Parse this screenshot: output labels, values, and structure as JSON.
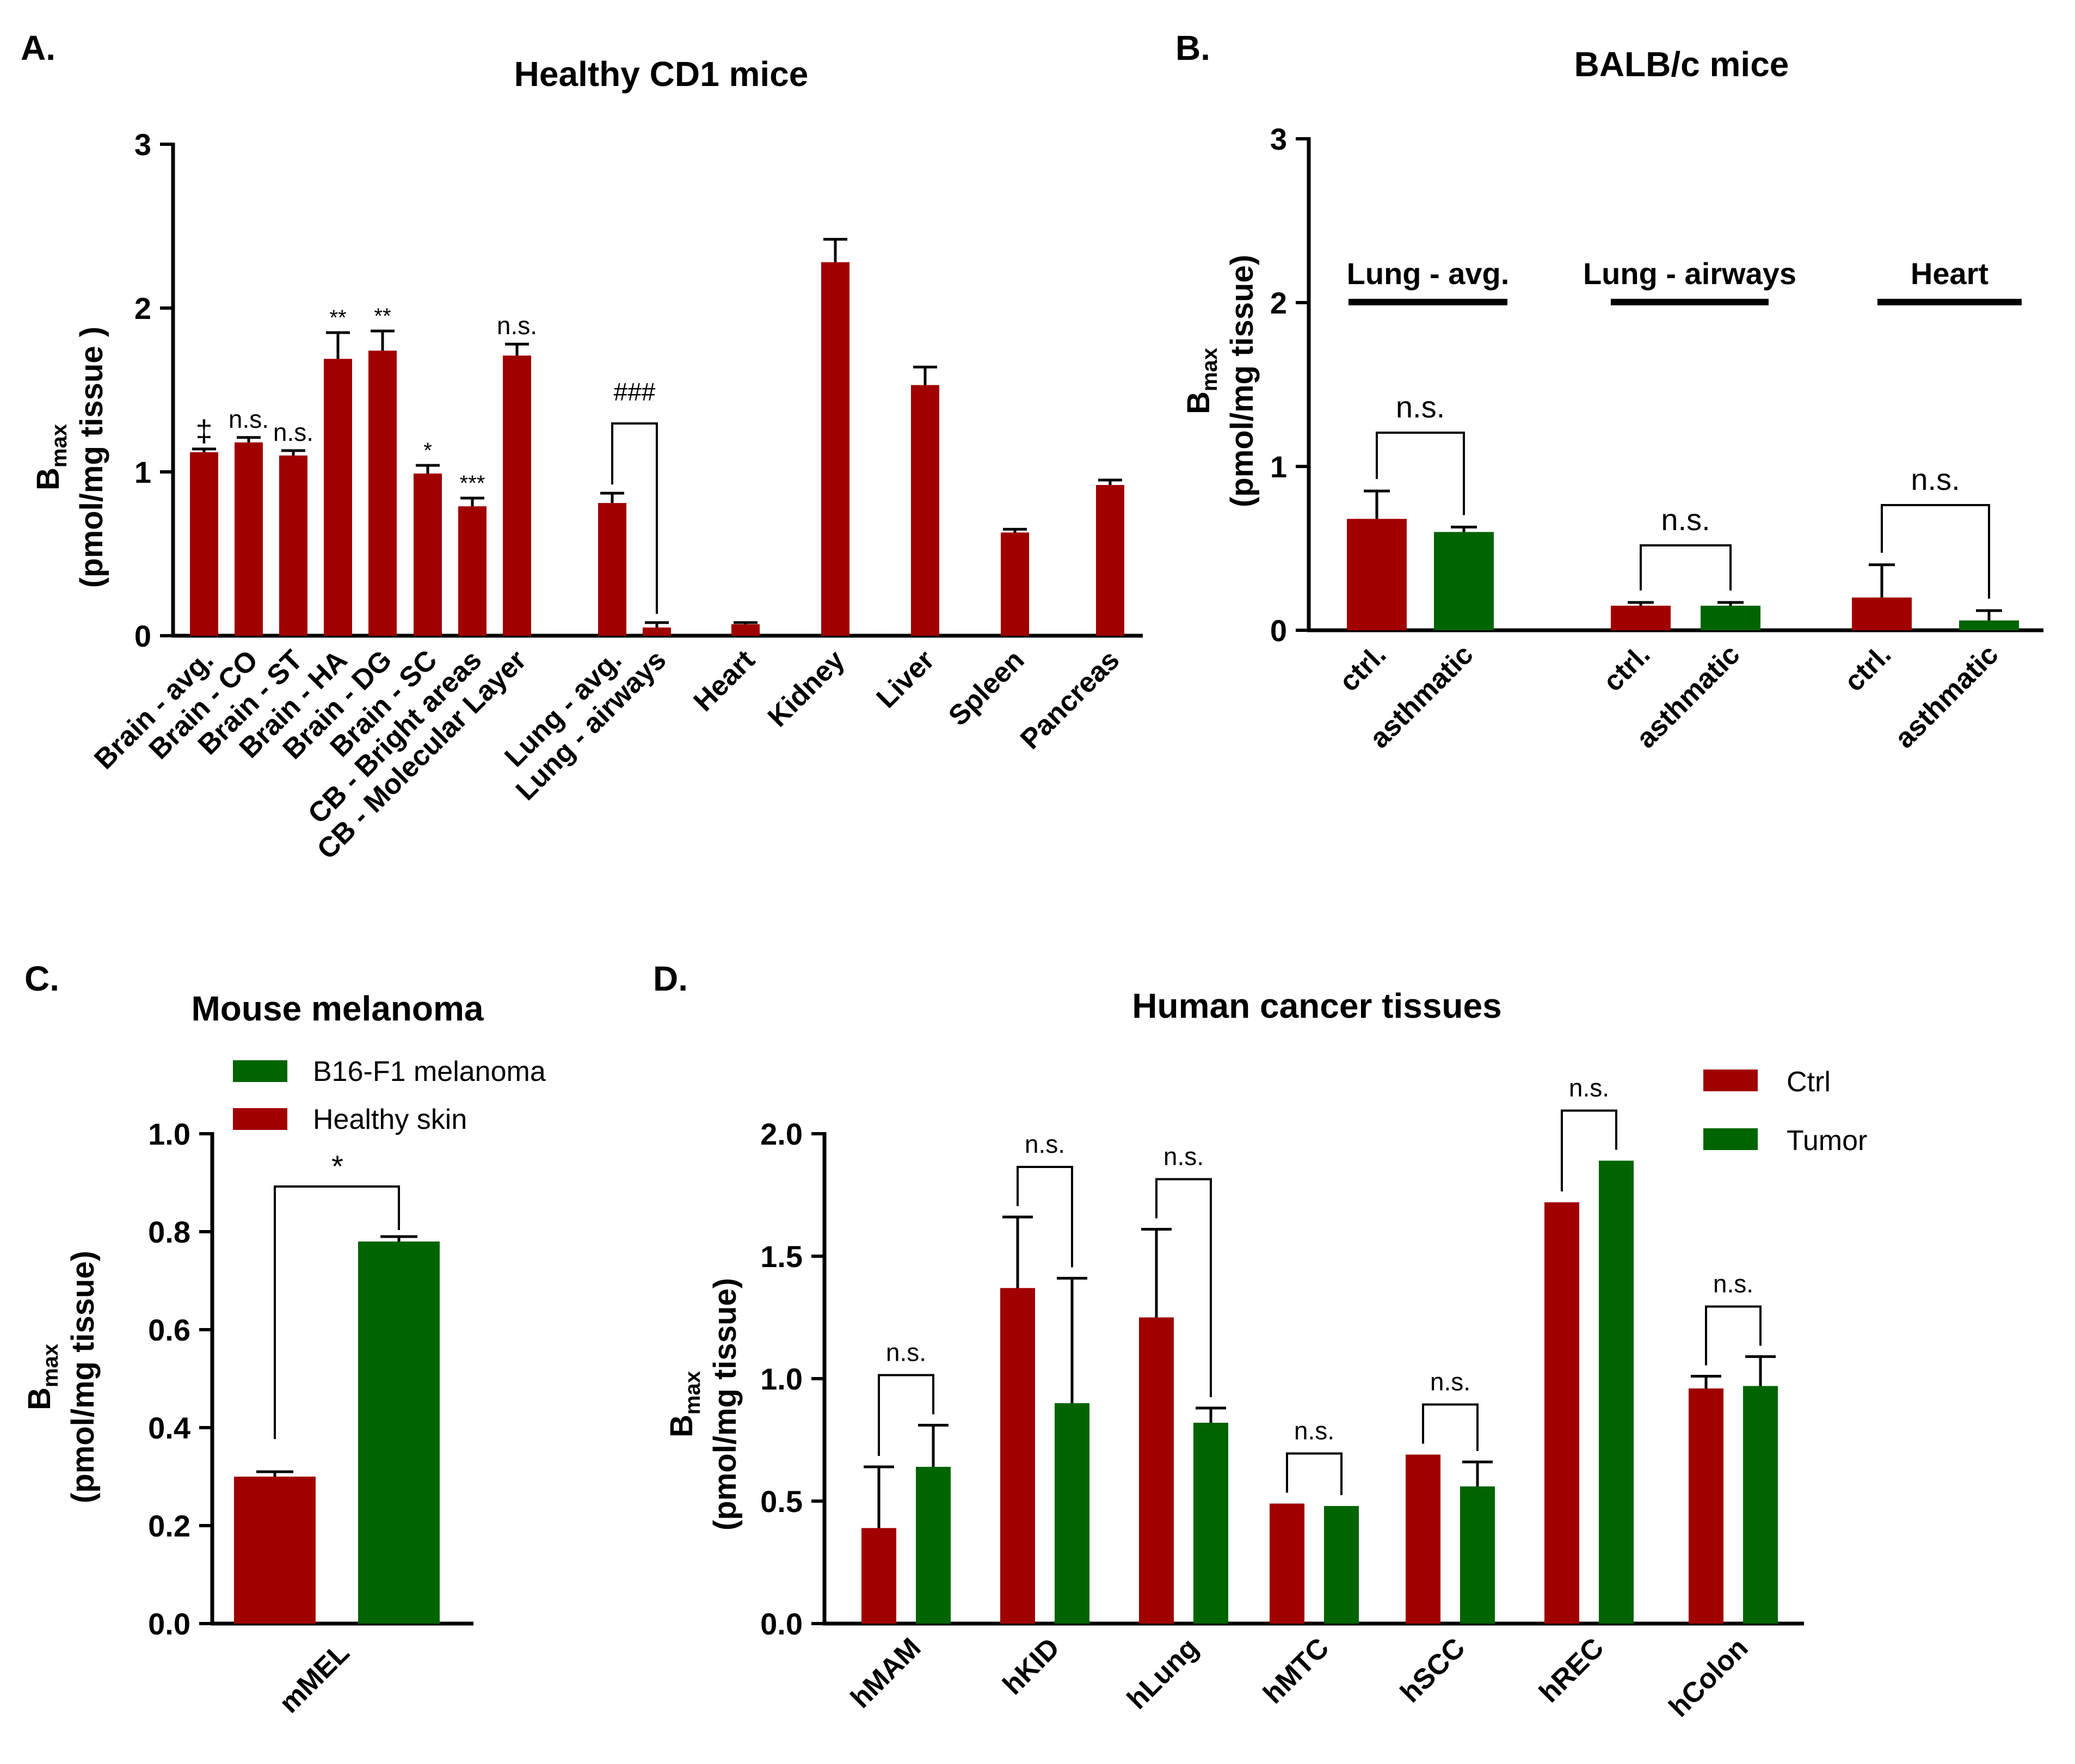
{
  "colors": {
    "red": "#a00000",
    "green": "#006400"
  },
  "panelA": {
    "letter": "A.",
    "chart_data": {
      "type": "bar",
      "title": "Healthy CD1 mice",
      "ylabel_main": "B",
      "ylabel_sub": "max",
      "ylabel_unit": "(pmol/mg tissue )",
      "ylim": [
        0,
        3
      ],
      "yticks": [
        "0",
        "1",
        "2",
        "3"
      ],
      "categories": [
        "Brain - avg.",
        "Brain - CO",
        "Brain - ST",
        "Brain - HA",
        "Brain - DG",
        "Brain - SC",
        "CB - Bright areas",
        "CB - Molecular Layer",
        "Lung - avg.",
        "Lung - airways",
        "Heart",
        "Kidney",
        "Liver",
        "Spleen",
        "Pancreas"
      ],
      "values": [
        1.12,
        1.18,
        1.1,
        1.69,
        1.74,
        0.99,
        0.79,
        1.71,
        0.81,
        0.05,
        0.07,
        2.28,
        1.53,
        0.63,
        0.92
      ],
      "errors": [
        0.02,
        0.03,
        0.03,
        0.16,
        0.12,
        0.05,
        0.05,
        0.07,
        0.06,
        0.03,
        0.01,
        0.14,
        0.11,
        0.02,
        0.03
      ],
      "sig": [
        "‡",
        "n.s.",
        "n.s.",
        "**",
        "**",
        "*",
        "***",
        "n.s.",
        "",
        "",
        "",
        "",
        "",
        "",
        ""
      ],
      "bracket_label": "###"
    }
  },
  "panelB": {
    "letter": "B.",
    "chart_data": {
      "type": "bar",
      "title": "BALB/c mice",
      "ylabel_main": "B",
      "ylabel_sub": "max",
      "ylabel_unit": "(pmol/mg tissue)",
      "ylim": [
        0,
        3
      ],
      "yticks": [
        "0",
        "1",
        "2",
        "3"
      ],
      "groups": [
        {
          "name": "Lung - avg.",
          "labels": [
            "ctrl.",
            "asthmatic"
          ],
          "values": [
            0.68,
            0.6
          ],
          "errors": [
            0.17,
            0.03
          ],
          "sig": "n.s."
        },
        {
          "name": "Lung - airways",
          "labels": [
            "ctrl.",
            "asthmatic"
          ],
          "values": [
            0.15,
            0.15
          ],
          "errors": [
            0.02,
            0.02
          ],
          "sig": "n.s."
        },
        {
          "name": "Heart",
          "labels": [
            "ctrl.",
            "asthmatic"
          ],
          "values": [
            0.2,
            0.06
          ],
          "errors": [
            0.2,
            0.06
          ],
          "sig": "n.s."
        }
      ]
    }
  },
  "panelC": {
    "letter": "C.",
    "chart_data": {
      "type": "bar",
      "title": "Mouse melanoma",
      "ylabel_main": "B",
      "ylabel_sub": "max",
      "ylabel_unit": "(pmol/mg tissue)",
      "ylim": [
        0,
        1.0
      ],
      "yticks": [
        "0.0",
        "0.2",
        "0.4",
        "0.6",
        "0.8",
        "1.0"
      ],
      "category": "mMEL",
      "series": [
        {
          "name": "Healthy skin",
          "value": 0.3,
          "error": 0.01
        },
        {
          "name": "B16-F1 melanoma",
          "value": 0.78,
          "error": 0.01
        }
      ],
      "legend": [
        "B16-F1 melanoma",
        "Healthy skin"
      ],
      "sig": "*"
    }
  },
  "panelD": {
    "letter": "D.",
    "chart_data": {
      "type": "bar",
      "title": "Human cancer tissues",
      "ylabel_main": "B",
      "ylabel_sub": "max",
      "ylabel_unit": "(pmol/mg tissue)",
      "ylim": [
        0,
        2.0
      ],
      "yticks": [
        "0.0",
        "0.5",
        "1.0",
        "1.5",
        "2.0"
      ],
      "categories": [
        "hMAM",
        "hKID",
        "hLung",
        "hMTC",
        "hSCC",
        "hREC",
        "hColon"
      ],
      "series": [
        {
          "name": "Ctrl",
          "values": [
            0.39,
            1.37,
            1.25,
            0.49,
            0.69,
            1.72,
            0.96
          ],
          "errors": [
            0.25,
            0.29,
            0.36,
            0,
            0,
            0,
            0.05
          ]
        },
        {
          "name": "Tumor",
          "values": [
            0.64,
            0.9,
            0.82,
            0.48,
            0.56,
            1.89,
            0.97
          ],
          "errors": [
            0.17,
            0.51,
            0.06,
            0,
            0.1,
            0,
            0.12
          ]
        }
      ],
      "sig": [
        "n.s.",
        "n.s.",
        "n.s.",
        "n.s.",
        "n.s.",
        "n.s.",
        "n.s."
      ],
      "legend": [
        "Ctrl",
        "Tumor"
      ]
    }
  }
}
